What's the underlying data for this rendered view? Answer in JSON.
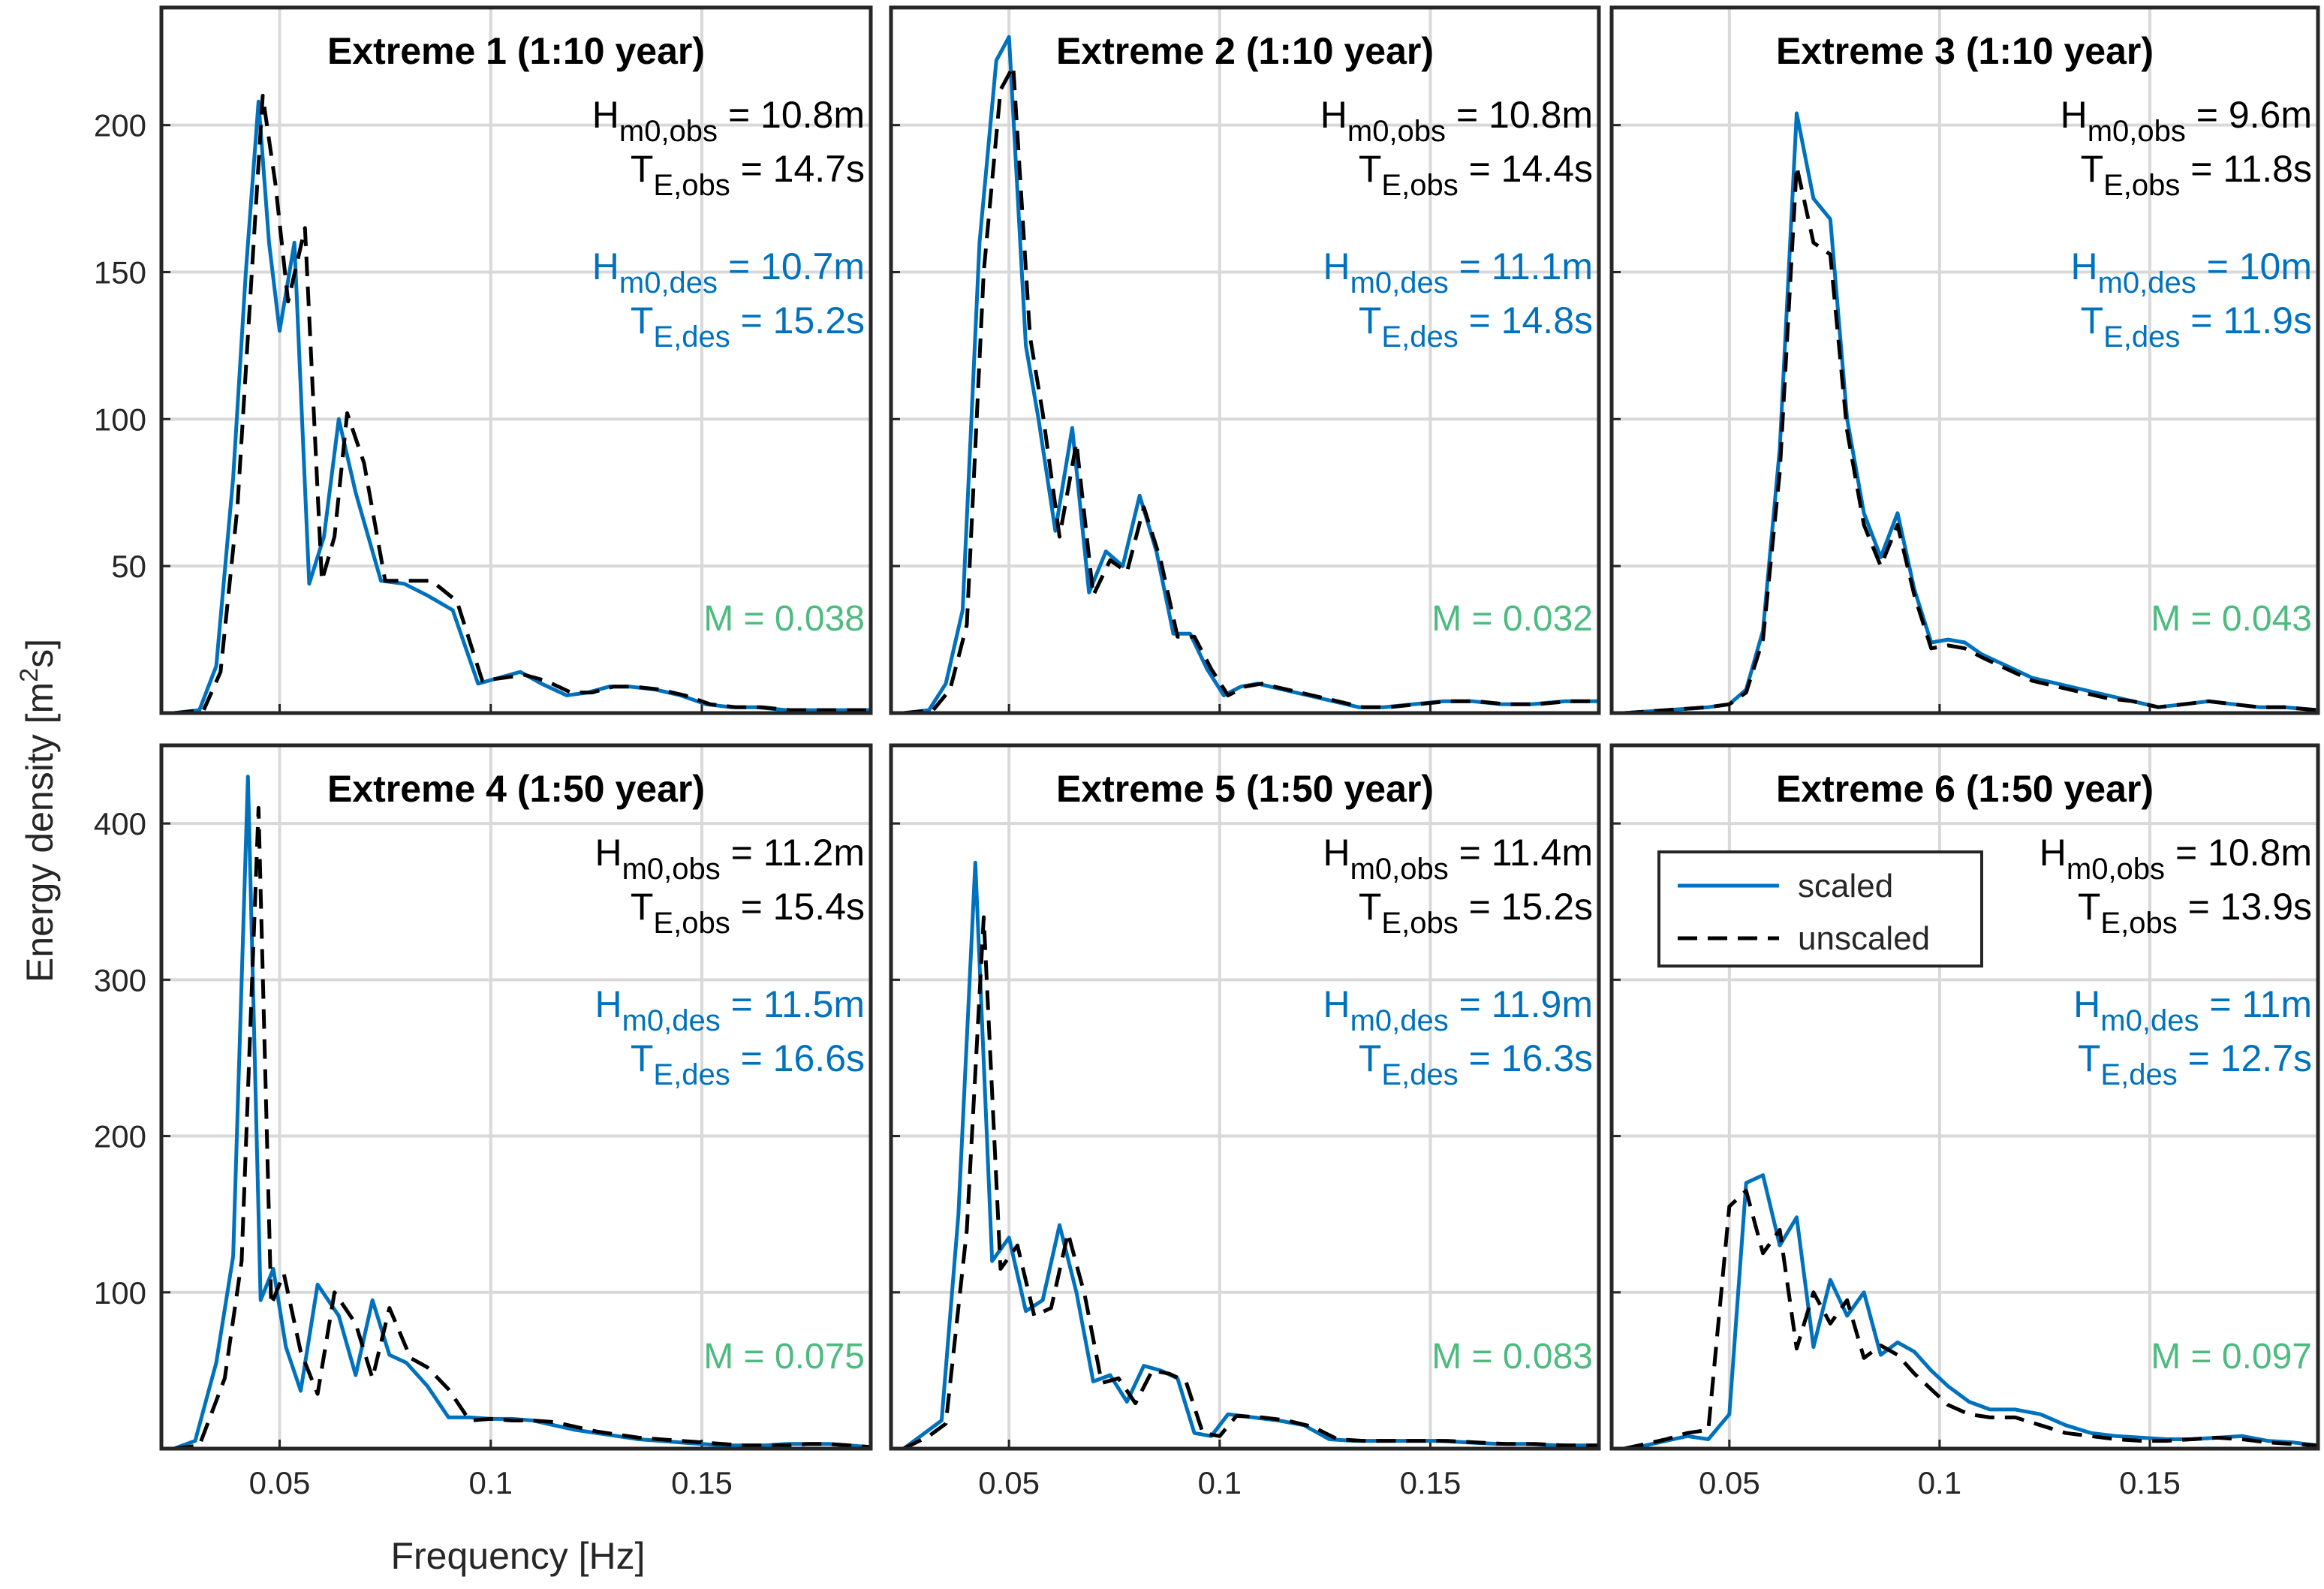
{
  "figure": {
    "ylabel": "Energy density [m",
    "ylabel_sup": "2",
    "ylabel_tail": "s]",
    "xlabel": "Frequency [Hz]",
    "legend": {
      "scaled": "scaled",
      "unscaled": "unscaled"
    },
    "colors": {
      "scaled": "#0072BD",
      "unscaled": "#000000",
      "metric": "#4DBB7F",
      "grid": "#d9d9d9"
    }
  },
  "chart_data": [
    {
      "type": "line",
      "title": "Extreme 1 (1:10 year)",
      "xlim": [
        0.022,
        0.19
      ],
      "ylim": [
        0,
        240
      ],
      "xticks": [
        "0.05",
        "0.1",
        "0.15"
      ],
      "yticks": [
        "50",
        "100",
        "150",
        "200"
      ],
      "annotations": {
        "h_obs": "= 10.8m",
        "t_obs": "= 14.7s",
        "h_des": "= 10.7m",
        "t_des": "= 15.2s",
        "metric": "M = 0.038"
      },
      "series": [
        {
          "name": "scaled",
          "x": [
            0.025,
            0.031,
            0.035,
            0.039,
            0.042,
            0.045,
            0.0475,
            0.05,
            0.0535,
            0.057,
            0.0605,
            0.064,
            0.068,
            0.074,
            0.0795,
            0.085,
            0.091,
            0.097,
            0.102,
            0.107,
            0.112,
            0.118,
            0.123,
            0.128,
            0.133,
            0.139,
            0.145,
            0.151,
            0.157,
            0.163,
            0.17,
            0.177,
            0.183,
            0.19
          ],
          "y": [
            0,
            1,
            16,
            80,
            150,
            208,
            160,
            130,
            160,
            44,
            60,
            100,
            75,
            45,
            44,
            40,
            35,
            10,
            12,
            14,
            10,
            6,
            7,
            9,
            9,
            8,
            6,
            3,
            2,
            2,
            1,
            1,
            1,
            1
          ]
        },
        {
          "name": "unscaled",
          "x": [
            0.025,
            0.032,
            0.036,
            0.04,
            0.043,
            0.046,
            0.049,
            0.052,
            0.056,
            0.06,
            0.063,
            0.066,
            0.07,
            0.075,
            0.081,
            0.086,
            0.092,
            0.098,
            0.103,
            0.108,
            0.113,
            0.119,
            0.124,
            0.129,
            0.134,
            0.14,
            0.146,
            0.152,
            0.158,
            0.164,
            0.171,
            0.178,
            0.184,
            0.19
          ],
          "y": [
            0,
            1,
            14,
            70,
            140,
            210,
            180,
            140,
            165,
            45,
            60,
            102,
            85,
            45,
            45,
            45,
            38,
            11,
            12,
            13,
            11,
            7,
            7,
            9,
            9,
            8,
            6,
            3,
            2,
            2,
            1,
            1,
            1,
            1
          ]
        }
      ]
    },
    {
      "type": "line",
      "title": "Extreme 2 (1:10 year)",
      "xlim": [
        0.022,
        0.19
      ],
      "ylim": [
        0,
        240
      ],
      "xticks": [
        "0.05",
        "0.1",
        "0.15"
      ],
      "yticks": [
        "50",
        "100",
        "150",
        "200"
      ],
      "annotations": {
        "h_obs": "= 10.8m",
        "t_obs": "= 14.4s",
        "h_des": "= 11.1m",
        "t_des": "= 14.8s",
        "metric": "M = 0.032"
      },
      "series": [
        {
          "name": "scaled",
          "x": [
            0.025,
            0.031,
            0.035,
            0.039,
            0.043,
            0.047,
            0.05,
            0.054,
            0.057,
            0.061,
            0.065,
            0.069,
            0.073,
            0.077,
            0.081,
            0.085,
            0.089,
            0.093,
            0.097,
            0.101,
            0.105,
            0.109,
            0.115,
            0.121,
            0.127,
            0.133,
            0.139,
            0.146,
            0.153,
            0.16,
            0.167,
            0.174,
            0.182,
            0.19
          ],
          "y": [
            0,
            1,
            10,
            35,
            160,
            222,
            230,
            125,
            100,
            62,
            97,
            41,
            55,
            50,
            74,
            55,
            27,
            27,
            15,
            6,
            9,
            10,
            8,
            6,
            4,
            2,
            2,
            3,
            4,
            4,
            3,
            3,
            4,
            4
          ]
        },
        {
          "name": "unscaled",
          "x": [
            0.025,
            0.032,
            0.036,
            0.04,
            0.044,
            0.048,
            0.051,
            0.055,
            0.058,
            0.062,
            0.066,
            0.07,
            0.074,
            0.078,
            0.082,
            0.086,
            0.09,
            0.094,
            0.098,
            0.102,
            0.106,
            0.11,
            0.116,
            0.122,
            0.128,
            0.134,
            0.14,
            0.147,
            0.154,
            0.161,
            0.168,
            0.175,
            0.183,
            0.19
          ],
          "y": [
            0,
            1,
            8,
            30,
            150,
            212,
            220,
            128,
            102,
            60,
            92,
            40,
            52,
            48,
            70,
            52,
            26,
            26,
            15,
            6,
            9,
            10,
            8,
            6,
            4,
            2,
            2,
            3,
            4,
            4,
            3,
            3,
            4,
            4
          ]
        }
      ]
    },
    {
      "type": "line",
      "title": "Extreme 3 (1:10 year)",
      "xlim": [
        0.022,
        0.19
      ],
      "ylim": [
        0,
        240
      ],
      "xticks": [
        "0.05",
        "0.1",
        "0.15"
      ],
      "yticks": [
        "50",
        "100",
        "150",
        "200"
      ],
      "annotations": {
        "h_obs": "= 9.6m",
        "t_obs": "= 11.8s",
        "h_des": "= 10m",
        "t_des": "= 11.9s",
        "metric": "M = 0.043"
      },
      "series": [
        {
          "name": "scaled",
          "x": [
            0.025,
            0.035,
            0.045,
            0.05,
            0.054,
            0.058,
            0.062,
            0.066,
            0.07,
            0.074,
            0.078,
            0.082,
            0.086,
            0.09,
            0.094,
            0.098,
            0.102,
            0.106,
            0.11,
            0.116,
            0.122,
            0.128,
            0.134,
            0.14,
            0.146,
            0.152,
            0.158,
            0.164,
            0.17,
            0.176,
            0.182,
            0.19
          ],
          "y": [
            0,
            1,
            2,
            3,
            8,
            28,
            90,
            204,
            175,
            168,
            100,
            68,
            53,
            68,
            42,
            24,
            25,
            24,
            20,
            16,
            12,
            10,
            8,
            6,
            4,
            2,
            3,
            4,
            3,
            2,
            2,
            1
          ]
        },
        {
          "name": "unscaled",
          "x": [
            0.025,
            0.035,
            0.045,
            0.05,
            0.054,
            0.058,
            0.062,
            0.066,
            0.07,
            0.074,
            0.078,
            0.082,
            0.086,
            0.09,
            0.094,
            0.098,
            0.102,
            0.106,
            0.11,
            0.116,
            0.122,
            0.128,
            0.134,
            0.14,
            0.146,
            0.152,
            0.158,
            0.164,
            0.17,
            0.176,
            0.182,
            0.19
          ],
          "y": [
            0,
            1,
            2,
            3,
            7,
            25,
            82,
            186,
            160,
            156,
            96,
            64,
            50,
            64,
            40,
            22,
            23,
            22,
            19,
            15,
            11,
            9,
            7,
            5,
            4,
            2,
            3,
            4,
            3,
            2,
            2,
            1
          ]
        }
      ]
    },
    {
      "type": "line",
      "title": "Extreme 4 (1:50 year)",
      "xlim": [
        0.022,
        0.19
      ],
      "ylim": [
        0,
        450
      ],
      "xticks": [
        "0.05",
        "0.1",
        "0.15"
      ],
      "yticks": [
        "100",
        "200",
        "300",
        "400"
      ],
      "annotations": {
        "h_obs": "= 11.2m",
        "t_obs": "= 15.4s",
        "h_des": "= 11.5m",
        "t_des": "= 16.6s",
        "metric": "M = 0.075"
      },
      "series": [
        {
          "name": "scaled",
          "x": [
            0.025,
            0.03,
            0.035,
            0.039,
            0.0425,
            0.0455,
            0.0485,
            0.0515,
            0.055,
            0.059,
            0.064,
            0.068,
            0.072,
            0.076,
            0.08,
            0.085,
            0.09,
            0.095,
            0.1,
            0.105,
            0.11,
            0.115,
            0.12,
            0.125,
            0.13,
            0.135,
            0.14,
            0.145,
            0.15,
            0.155,
            0.16,
            0.165,
            0.17,
            0.175,
            0.18,
            0.185,
            0.19
          ],
          "y": [
            0,
            5,
            55,
            123,
            430,
            95,
            115,
            65,
            37,
            105,
            85,
            47,
            95,
            60,
            55,
            40,
            20,
            20,
            19,
            19,
            18,
            15,
            12,
            10,
            8,
            6,
            5,
            4,
            3,
            2,
            2,
            2,
            3,
            3,
            3,
            2,
            1
          ]
        },
        {
          "name": "unscaled",
          "x": [
            0.025,
            0.031,
            0.037,
            0.041,
            0.045,
            0.048,
            0.051,
            0.055,
            0.059,
            0.063,
            0.068,
            0.072,
            0.076,
            0.081,
            0.085,
            0.09,
            0.095,
            0.1,
            0.105,
            0.11,
            0.115,
            0.12,
            0.125,
            0.13,
            0.135,
            0.14,
            0.145,
            0.15,
            0.155,
            0.16,
            0.165,
            0.17,
            0.175,
            0.18,
            0.185,
            0.19
          ],
          "y": [
            0,
            2,
            45,
            120,
            410,
            92,
            112,
            62,
            35,
            100,
            80,
            45,
            90,
            58,
            52,
            38,
            18,
            19,
            18,
            18,
            17,
            14,
            11,
            9,
            7,
            6,
            5,
            4,
            3,
            2,
            2,
            2,
            3,
            3,
            2,
            1
          ]
        }
      ]
    },
    {
      "type": "line",
      "title": "Extreme 5 (1:50 year)",
      "xlim": [
        0.022,
        0.19
      ],
      "ylim": [
        0,
        450
      ],
      "xticks": [
        "0.05",
        "0.1",
        "0.15"
      ],
      "yticks": [
        "100",
        "200",
        "300",
        "400"
      ],
      "annotations": {
        "h_obs": "= 11.4m",
        "t_obs": "= 15.2s",
        "h_des": "= 11.9m",
        "t_des": "= 16.3s",
        "metric": "M = 0.083"
      },
      "series": [
        {
          "name": "scaled",
          "x": [
            0.025,
            0.03,
            0.034,
            0.038,
            0.042,
            0.046,
            0.05,
            0.054,
            0.058,
            0.062,
            0.066,
            0.07,
            0.074,
            0.078,
            0.082,
            0.086,
            0.09,
            0.094,
            0.098,
            0.102,
            0.108,
            0.114,
            0.12,
            0.126,
            0.132,
            0.138,
            0.145,
            0.152,
            0.159,
            0.166,
            0.173,
            0.18,
            0.19
          ],
          "y": [
            0,
            10,
            18,
            150,
            375,
            120,
            135,
            88,
            95,
            143,
            100,
            43,
            47,
            30,
            53,
            50,
            45,
            10,
            8,
            22,
            20,
            18,
            15,
            6,
            5,
            5,
            5,
            5,
            4,
            3,
            3,
            2,
            2
          ]
        },
        {
          "name": "unscaled",
          "x": [
            0.025,
            0.031,
            0.035,
            0.04,
            0.044,
            0.048,
            0.052,
            0.056,
            0.06,
            0.064,
            0.068,
            0.072,
            0.076,
            0.08,
            0.084,
            0.088,
            0.092,
            0.096,
            0.1,
            0.104,
            0.11,
            0.116,
            0.122,
            0.128,
            0.134,
            0.14,
            0.147,
            0.154,
            0.161,
            0.168,
            0.175,
            0.182,
            0.19
          ],
          "y": [
            0,
            8,
            16,
            140,
            340,
            115,
            130,
            85,
            90,
            138,
            98,
            42,
            45,
            29,
            50,
            48,
            43,
            10,
            8,
            21,
            20,
            18,
            14,
            6,
            5,
            5,
            5,
            5,
            4,
            3,
            3,
            2,
            2
          ]
        }
      ]
    },
    {
      "type": "line",
      "title": "Extreme 6 (1:50 year)",
      "xlim": [
        0.022,
        0.19
      ],
      "ylim": [
        0,
        450
      ],
      "xticks": [
        "0.05",
        "0.1",
        "0.15"
      ],
      "yticks": [
        "100",
        "200",
        "300",
        "400"
      ],
      "annotations": {
        "h_obs": "= 10.8m",
        "t_obs": "= 13.9s",
        "h_des": "= 11m",
        "t_des": "= 12.7s",
        "metric": "M = 0.097"
      },
      "series": [
        {
          "name": "scaled",
          "x": [
            0.025,
            0.03,
            0.035,
            0.04,
            0.045,
            0.05,
            0.054,
            0.058,
            0.062,
            0.066,
            0.07,
            0.074,
            0.078,
            0.082,
            0.086,
            0.09,
            0.094,
            0.098,
            0.102,
            0.107,
            0.112,
            0.118,
            0.124,
            0.13,
            0.136,
            0.142,
            0.148,
            0.154,
            0.16,
            0.166,
            0.172,
            0.178,
            0.184,
            0.19
          ],
          "y": [
            0,
            2,
            5,
            8,
            6,
            22,
            170,
            175,
            130,
            148,
            65,
            108,
            85,
            100,
            60,
            68,
            62,
            50,
            40,
            30,
            25,
            25,
            22,
            15,
            10,
            8,
            7,
            6,
            6,
            7,
            8,
            5,
            4,
            2
          ]
        },
        {
          "name": "unscaled",
          "x": [
            0.025,
            0.03,
            0.035,
            0.04,
            0.045,
            0.05,
            0.054,
            0.058,
            0.062,
            0.066,
            0.07,
            0.074,
            0.078,
            0.082,
            0.086,
            0.09,
            0.094,
            0.098,
            0.102,
            0.107,
            0.112,
            0.118,
            0.124,
            0.13,
            0.136,
            0.142,
            0.148,
            0.154,
            0.16,
            0.166,
            0.172,
            0.178,
            0.184,
            0.19
          ],
          "y": [
            0,
            3,
            6,
            10,
            12,
            155,
            165,
            125,
            140,
            64,
            100,
            80,
            95,
            58,
            66,
            60,
            48,
            38,
            28,
            22,
            20,
            20,
            15,
            10,
            8,
            6,
            5,
            5,
            6,
            7,
            6,
            4,
            3,
            2
          ]
        }
      ]
    }
  ]
}
